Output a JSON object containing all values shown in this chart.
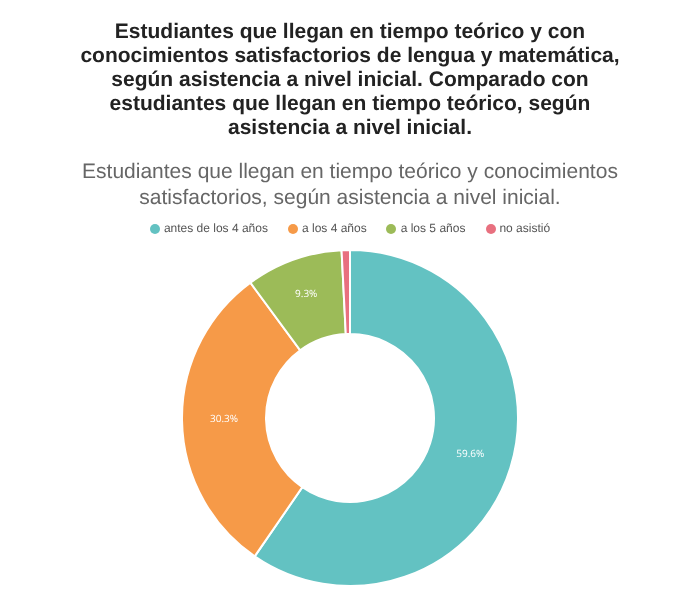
{
  "chart_data": {
    "type": "donut",
    "title": "Estudiantes que llegan en tiempo teórico y con conocimientos satisfactorios de lengua y matemática, según asistencia a nivel inicial. Comparado con estudiantes que llegan en tiempo teórico, según asistencia a nivel inicial.",
    "subtitle": "Estudiantes que llegan en tiempo teórico y conocimientos satisfactorios, según asistencia a nivel inicial.",
    "categories": [
      "antes de los 4 años",
      "a los 4 años",
      "a los 5 años",
      "no asistió"
    ],
    "values": [
      59.6,
      30.3,
      9.3,
      0.8
    ],
    "value_labels": [
      "59.6%",
      "30.3%",
      "9.3%",
      null
    ],
    "colors": [
      "#63c2c2",
      "#f69a48",
      "#9cbb58",
      "#e8707f"
    ],
    "legend": "top"
  }
}
